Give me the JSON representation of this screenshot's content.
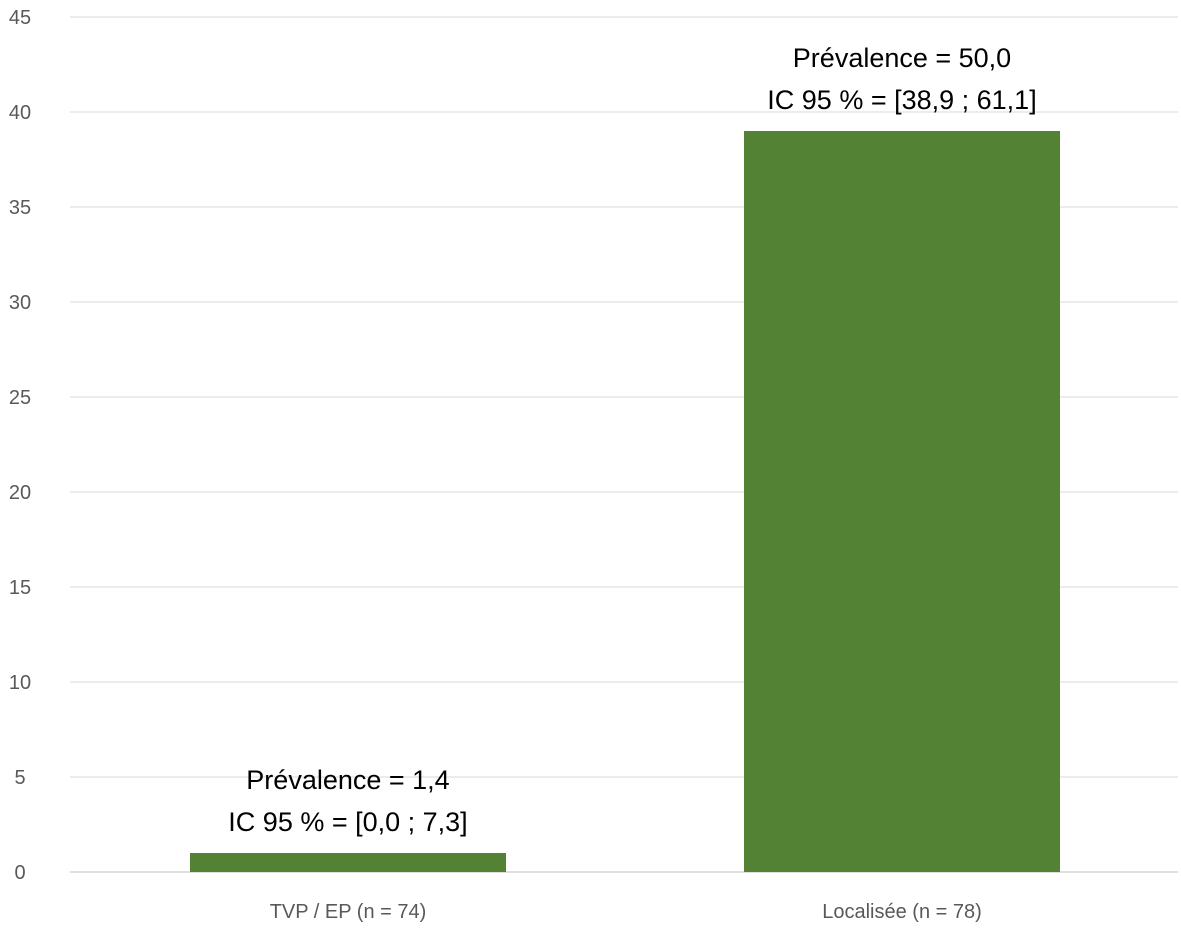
{
  "chart_data": {
    "type": "bar",
    "categories": [
      "TVP / EP (n = 74)",
      "Localisée (n = 78)"
    ],
    "values": [
      1,
      39
    ],
    "ylim": [
      0,
      45
    ],
    "yticks": [
      0,
      5,
      10,
      15,
      20,
      25,
      30,
      35,
      40,
      45
    ],
    "grid": true,
    "bar_color": "#548235",
    "annotations": [
      {
        "lines": [
          "Prévalence = 1,4",
          "IC 95 % = [0,0 ; 7,3]"
        ]
      },
      {
        "lines": [
          "Prévalence = 50,0",
          "IC 95 % = [38,9 ; 61,1]"
        ]
      }
    ]
  }
}
